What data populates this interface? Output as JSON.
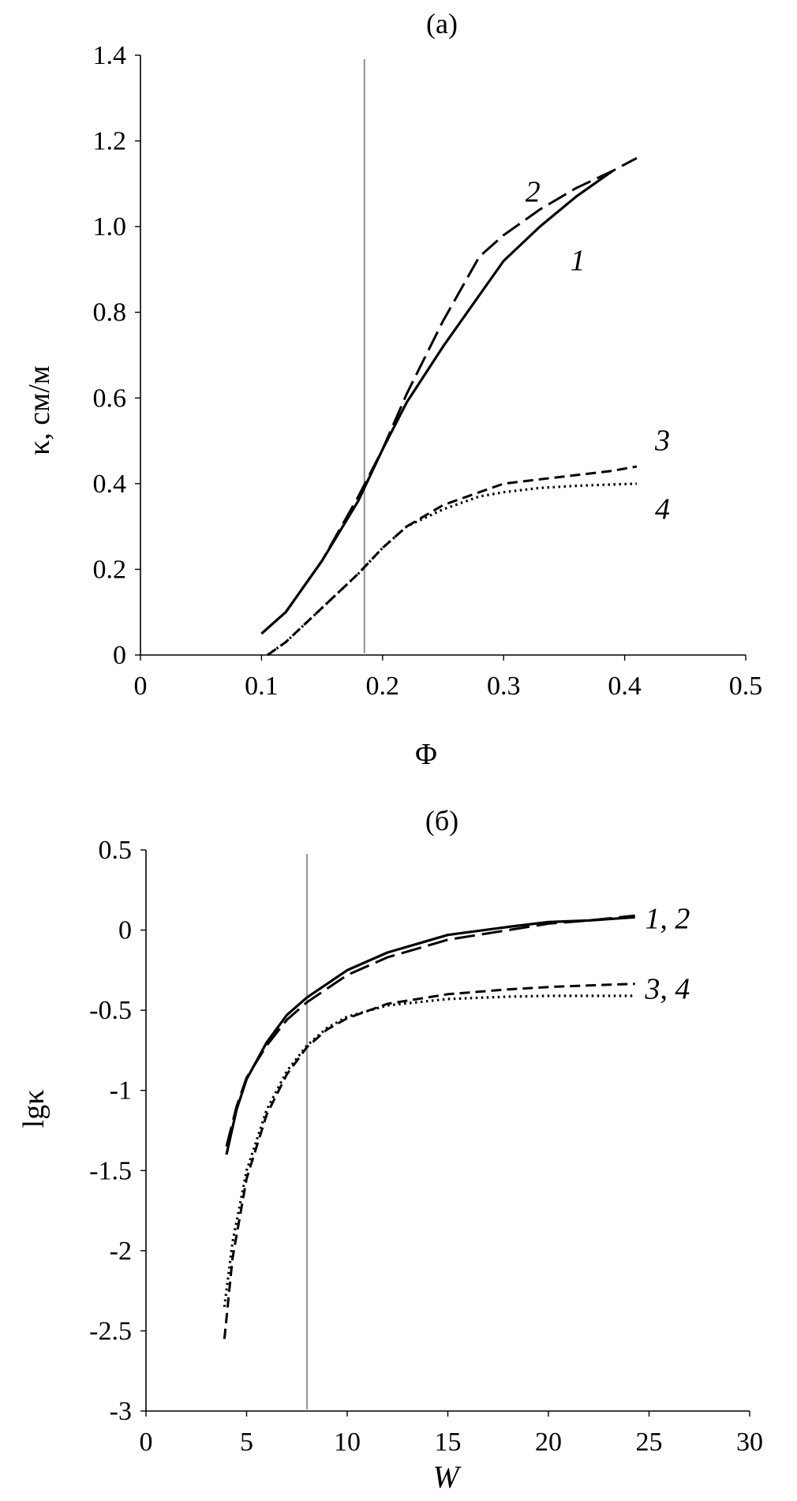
{
  "chart_data": [
    {
      "type": "line",
      "title": "(a)",
      "xlabel": "Φ",
      "ylabel": "κ, см/м",
      "xlim": [
        0,
        0.5
      ],
      "ylim": [
        0,
        1.4
      ],
      "xticks": [
        "0",
        "0.1",
        "0.2",
        "0.3",
        "0.4",
        "0.5"
      ],
      "yticks": [
        "0",
        "0.2",
        "0.4",
        "0.6",
        "0.8",
        "1.0",
        "1.2",
        "1.4"
      ],
      "vline": 0.185,
      "grid": false,
      "series": [
        {
          "name": "1",
          "style": "solid",
          "x": [
            0.1,
            0.12,
            0.15,
            0.18,
            0.2,
            0.22,
            0.25,
            0.28,
            0.3,
            0.33,
            0.36,
            0.39
          ],
          "y": [
            0.05,
            0.1,
            0.22,
            0.36,
            0.48,
            0.59,
            0.72,
            0.84,
            0.92,
            1.0,
            1.07,
            1.13
          ],
          "label_pos": [
            0.355,
            0.92
          ]
        },
        {
          "name": "2",
          "style": "long-dash",
          "x": [
            0.1,
            0.12,
            0.15,
            0.18,
            0.2,
            0.22,
            0.25,
            0.28,
            0.3,
            0.33,
            0.36,
            0.39,
            0.41
          ],
          "y": [
            0.05,
            0.1,
            0.22,
            0.37,
            0.48,
            0.61,
            0.78,
            0.93,
            0.98,
            1.04,
            1.09,
            1.13,
            1.16
          ],
          "label_pos": [
            0.318,
            1.08
          ]
        },
        {
          "name": "3",
          "style": "short-dash",
          "x": [
            0.105,
            0.12,
            0.15,
            0.18,
            0.2,
            0.22,
            0.25,
            0.28,
            0.3,
            0.33,
            0.36,
            0.39,
            0.41
          ],
          "y": [
            0.0,
            0.03,
            0.11,
            0.19,
            0.25,
            0.3,
            0.35,
            0.38,
            0.4,
            0.41,
            0.42,
            0.43,
            0.44
          ],
          "label_pos": [
            0.425,
            0.5
          ]
        },
        {
          "name": "4",
          "style": "dotted",
          "x": [
            0.105,
            0.12,
            0.15,
            0.18,
            0.2,
            0.22,
            0.25,
            0.28,
            0.3,
            0.33,
            0.36,
            0.39,
            0.41
          ],
          "y": [
            0.0,
            0.03,
            0.11,
            0.19,
            0.25,
            0.3,
            0.34,
            0.37,
            0.38,
            0.39,
            0.395,
            0.398,
            0.4
          ],
          "label_pos": [
            0.425,
            0.34
          ]
        }
      ]
    },
    {
      "type": "line",
      "title": "(б)",
      "xlabel": "W",
      "ylabel": "lgκ",
      "xlim": [
        0,
        30
      ],
      "ylim": [
        -3,
        0.5
      ],
      "xticks": [
        "0",
        "5",
        "10",
        "15",
        "20",
        "25",
        "30"
      ],
      "yticks": [
        "-3",
        "-2.5",
        "-2",
        "-1.5",
        "-1",
        "-0.5",
        "0",
        "0.5"
      ],
      "vline": 8,
      "grid": false,
      "series": [
        {
          "name": "1",
          "style": "solid",
          "x": [
            4,
            4.5,
            5,
            6,
            7,
            8,
            10,
            12,
            15,
            18,
            20,
            22,
            24.3
          ],
          "y": [
            -1.4,
            -1.12,
            -0.93,
            -0.7,
            -0.53,
            -0.42,
            -0.25,
            -0.14,
            -0.03,
            0.02,
            0.05,
            0.06,
            0.08
          ]
        },
        {
          "name": "2",
          "style": "long-dash",
          "x": [
            4,
            4.5,
            5,
            6,
            7,
            8,
            10,
            12,
            15,
            18,
            20,
            22,
            24.3
          ],
          "y": [
            -1.35,
            -1.1,
            -0.92,
            -0.72,
            -0.56,
            -0.45,
            -0.28,
            -0.17,
            -0.06,
            0.0,
            0.04,
            0.06,
            0.09
          ]
        },
        {
          "name": "3",
          "style": "short-dash",
          "x": [
            3.9,
            4.3,
            5,
            6,
            7,
            8,
            9,
            10,
            12,
            15,
            18,
            20,
            22,
            24.3
          ],
          "y": [
            -2.55,
            -2.05,
            -1.55,
            -1.15,
            -0.9,
            -0.73,
            -0.62,
            -0.55,
            -0.46,
            -0.4,
            -0.37,
            -0.355,
            -0.345,
            -0.335
          ]
        },
        {
          "name": "4",
          "style": "dotted",
          "x": [
            3.9,
            4.3,
            5,
            6,
            7,
            8,
            9,
            10,
            12,
            15,
            18,
            20,
            22,
            24.3
          ],
          "y": [
            -2.35,
            -1.95,
            -1.5,
            -1.12,
            -0.88,
            -0.72,
            -0.61,
            -0.54,
            -0.47,
            -0.43,
            -0.415,
            -0.41,
            -0.41,
            -0.41
          ]
        }
      ],
      "labels": [
        {
          "text": "1, 2",
          "pos": [
            24.8,
            0.07
          ]
        },
        {
          "text": "3, 4",
          "pos": [
            24.8,
            -0.37
          ]
        }
      ]
    }
  ]
}
